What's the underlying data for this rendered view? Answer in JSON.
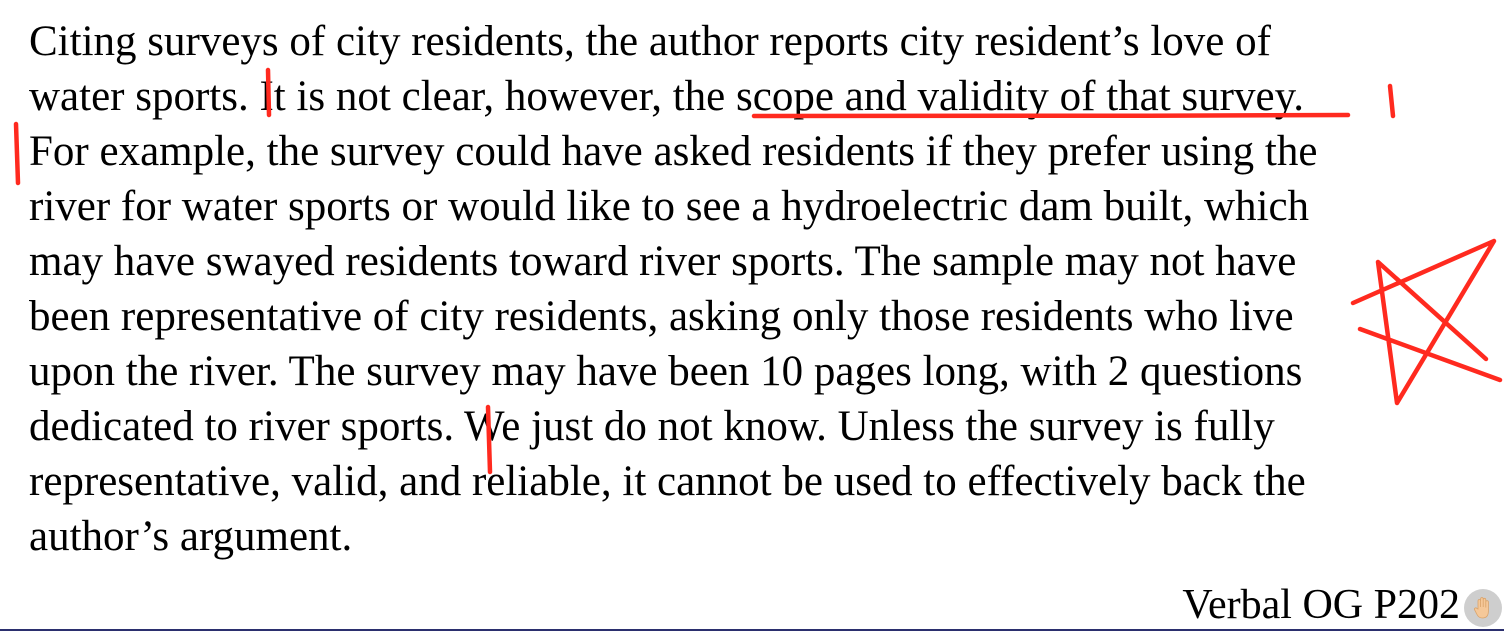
{
  "document": {
    "lines": [
      "Citing surveys of city residents, the author reports city resident’s love of",
      "water sports. It is not clear, however, the scope and validity of that survey.",
      "For example, the survey could have asked residents if they prefer using the",
      "river for water sports or would like to see a hydroelectric dam built, which",
      "may have swayed residents toward river sports. The sample may not have",
      "been representative of city residents, asking only those residents who live",
      "upon the river. The survey may have been 10 pages long, with 2 questions",
      "dedicated to river sports. We just do not know. Unless the survey is fully",
      "representative, valid, and reliable, it cannot be used to effectively back the",
      "author’s argument."
    ]
  },
  "footer": {
    "source": "Verbal OG P202"
  },
  "annotation_color": "#ff2a1f",
  "icons": {
    "raise_hand": "raise-hand-icon"
  }
}
